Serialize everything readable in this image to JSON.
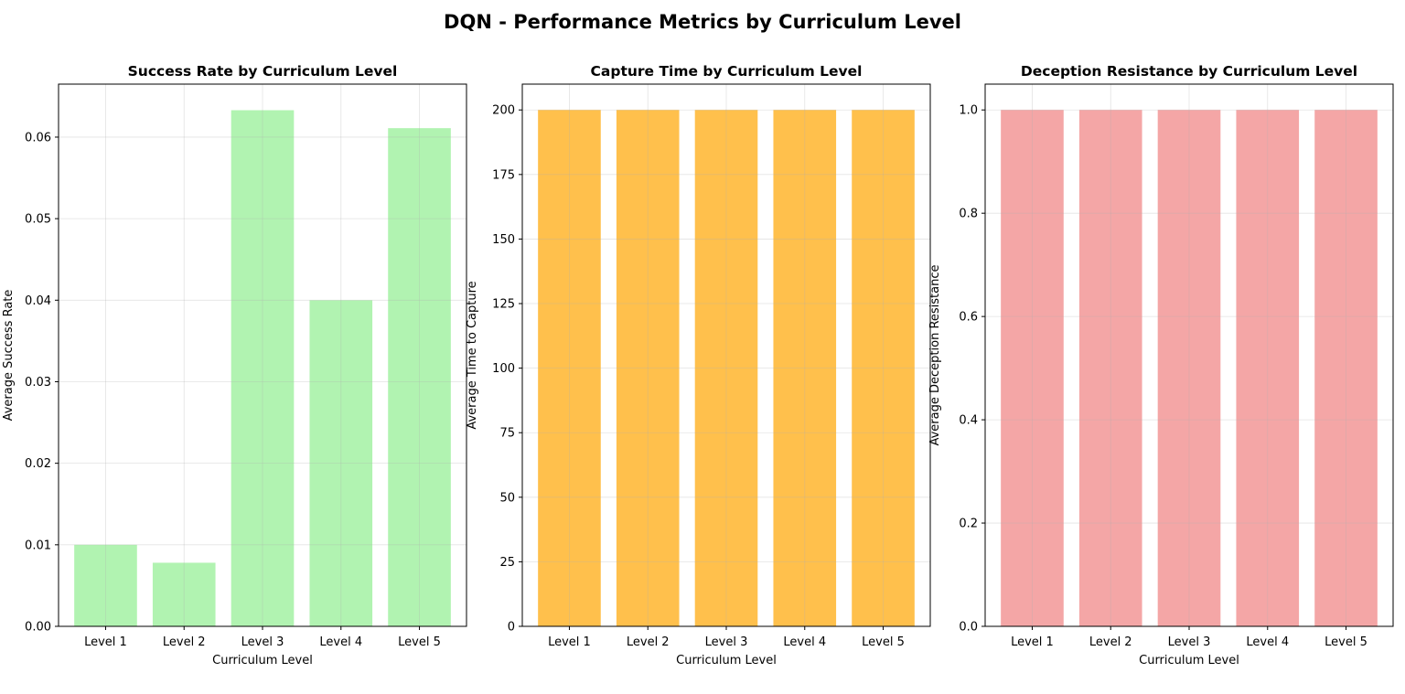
{
  "suptitle": "DQN - Performance Metrics by Curriculum Level",
  "chart_data": [
    {
      "type": "bar",
      "title": "Success Rate by Curriculum Level",
      "xlabel": "Curriculum Level",
      "ylabel": "Average Success Rate",
      "categories": [
        "Level 1",
        "Level 2",
        "Level 3",
        "Level 4",
        "Level 5"
      ],
      "values": [
        0.01,
        0.0078,
        0.0633,
        0.04,
        0.0611
      ],
      "ylim": [
        0,
        0.0665
      ],
      "yticks": [
        0.0,
        0.01,
        0.02,
        0.03,
        0.04,
        0.05,
        0.06
      ],
      "ytick_labels": [
        "0.00",
        "0.01",
        "0.02",
        "0.03",
        "0.04",
        "0.05",
        "0.06"
      ],
      "color": "#90ee90",
      "grid": true
    },
    {
      "type": "bar",
      "title": "Capture Time by Curriculum Level",
      "xlabel": "Curriculum Level",
      "ylabel": "Average Time to Capture",
      "categories": [
        "Level 1",
        "Level 2",
        "Level 3",
        "Level 4",
        "Level 5"
      ],
      "values": [
        200,
        200,
        200,
        200,
        200
      ],
      "ylim": [
        0,
        210
      ],
      "yticks": [
        0,
        25,
        50,
        75,
        100,
        125,
        150,
        175,
        200
      ],
      "ytick_labels": [
        "0",
        "25",
        "50",
        "75",
        "100",
        "125",
        "150",
        "175",
        "200"
      ],
      "color": "#ffa500",
      "grid": true
    },
    {
      "type": "bar",
      "title": "Deception Resistance by Curriculum Level",
      "xlabel": "Curriculum Level",
      "ylabel": "Average Deception Resistance",
      "categories": [
        "Level 1",
        "Level 2",
        "Level 3",
        "Level 4",
        "Level 5"
      ],
      "values": [
        1.0,
        1.0,
        1.0,
        1.0,
        1.0
      ],
      "ylim": [
        0,
        1.05
      ],
      "yticks": [
        0.0,
        0.2,
        0.4,
        0.6,
        0.8,
        1.0
      ],
      "ytick_labels": [
        "0.0",
        "0.2",
        "0.4",
        "0.6",
        "0.8",
        "1.0"
      ],
      "color": "#f08080",
      "grid": true
    }
  ]
}
